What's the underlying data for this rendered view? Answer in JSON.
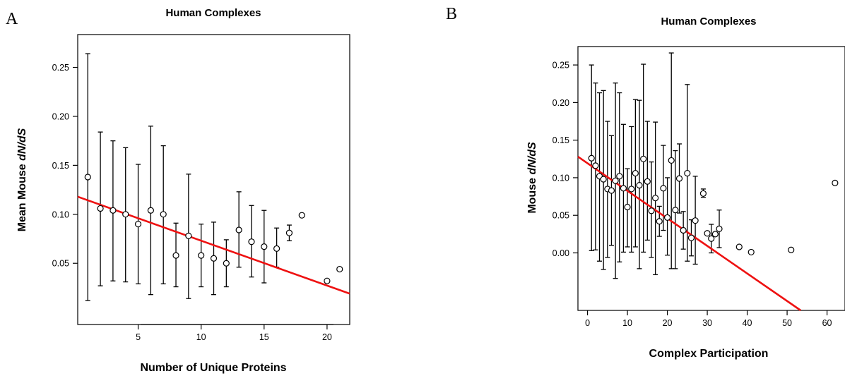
{
  "chart_data": [
    {
      "type": "scatter",
      "panel_label": "A",
      "title": "Human Complexes",
      "xlabel": "Number of Unique Proteins",
      "ylabel_prefix": "Mean Mouse ",
      "ylabel_em": "dN/dS",
      "xlim": [
        0.2,
        21.8
      ],
      "ylim": [
        -0.0125,
        0.2835
      ],
      "xticks": [
        5,
        10,
        15,
        20
      ],
      "xtick_labels": [
        "5",
        "10",
        "15",
        "20"
      ],
      "yticks": [
        0.05,
        0.1,
        0.15,
        0.2,
        0.25
      ],
      "ytick_labels": [
        "0.05",
        "0.10",
        "0.15",
        "0.20",
        "0.25"
      ],
      "x_axis_style": "bottom-only",
      "grid": false,
      "legend": "none",
      "line_color": "#ee1111",
      "regression_line": {
        "x": [
          0.2,
          21.8
        ],
        "y": [
          0.118,
          0.019
        ]
      },
      "points": [
        {
          "x": 1,
          "y": 0.138,
          "lo": 0.012,
          "hi": 0.264
        },
        {
          "x": 2,
          "y": 0.106,
          "lo": 0.027,
          "hi": 0.184
        },
        {
          "x": 3,
          "y": 0.104,
          "lo": 0.032,
          "hi": 0.175
        },
        {
          "x": 4,
          "y": 0.1,
          "lo": 0.031,
          "hi": 0.168
        },
        {
          "x": 5,
          "y": 0.09,
          "lo": 0.029,
          "hi": 0.151
        },
        {
          "x": 6,
          "y": 0.104,
          "lo": 0.018,
          "hi": 0.19
        },
        {
          "x": 7,
          "y": 0.1,
          "lo": 0.029,
          "hi": 0.17
        },
        {
          "x": 8,
          "y": 0.058,
          "lo": 0.026,
          "hi": 0.091
        },
        {
          "x": 9,
          "y": 0.078,
          "lo": 0.014,
          "hi": 0.141
        },
        {
          "x": 10,
          "y": 0.058,
          "lo": 0.026,
          "hi": 0.09
        },
        {
          "x": 11,
          "y": 0.055,
          "lo": 0.018,
          "hi": 0.092
        },
        {
          "x": 12,
          "y": 0.05,
          "lo": 0.026,
          "hi": 0.074
        },
        {
          "x": 13,
          "y": 0.084,
          "lo": 0.046,
          "hi": 0.123
        },
        {
          "x": 14,
          "y": 0.072,
          "lo": 0.036,
          "hi": 0.109
        },
        {
          "x": 15,
          "y": 0.067,
          "lo": 0.03,
          "hi": 0.104
        },
        {
          "x": 16,
          "y": 0.065,
          "lo": 0.046,
          "hi": 0.086
        },
        {
          "x": 17,
          "y": 0.081,
          "lo": 0.073,
          "hi": 0.089
        },
        {
          "x": 18,
          "y": 0.099
        },
        {
          "x": 20,
          "y": 0.032
        },
        {
          "x": 21,
          "y": 0.044
        }
      ]
    },
    {
      "type": "scatter",
      "panel_label": "B",
      "title": "Human Complexes",
      "xlabel": "Complex Participation",
      "ylabel_prefix": "Mouse ",
      "ylabel_em": "dN/dS",
      "xlim": [
        -2.4,
        64.5
      ],
      "ylim": [
        -0.0765,
        0.2745
      ],
      "xticks": [
        0,
        10,
        20,
        30,
        40,
        50,
        60
      ],
      "xtick_labels": [
        "0",
        "10",
        "20",
        "30",
        "40",
        "50",
        "60"
      ],
      "yticks": [
        0.0,
        0.05,
        0.1,
        0.15,
        0.2,
        0.25
      ],
      "ytick_labels": [
        "0.00",
        "0.05",
        "0.10",
        "0.15",
        "0.20",
        "0.25"
      ],
      "x_axis_style": "full-frame",
      "grid": false,
      "legend": "none",
      "line_color": "#ee1111",
      "regression_line": {
        "x": [
          -2.4,
          53.4
        ],
        "y": [
          0.128,
          -0.0765
        ]
      },
      "points": [
        {
          "x": 1,
          "y": 0.126,
          "lo": 0.003,
          "hi": 0.25
        },
        {
          "x": 2,
          "y": 0.116,
          "lo": 0.004,
          "hi": 0.226
        },
        {
          "x": 3,
          "y": 0.102,
          "lo": -0.011,
          "hi": 0.213
        },
        {
          "x": 4,
          "y": 0.098,
          "lo": -0.022,
          "hi": 0.216
        },
        {
          "x": 5,
          "y": 0.085,
          "lo": -0.006,
          "hi": 0.175
        },
        {
          "x": 6,
          "y": 0.083,
          "lo": 0.01,
          "hi": 0.156
        },
        {
          "x": 7,
          "y": 0.096,
          "lo": -0.034,
          "hi": 0.226
        },
        {
          "x": 8,
          "y": 0.102,
          "lo": -0.012,
          "hi": 0.213
        },
        {
          "x": 9,
          "y": 0.086,
          "lo": 0.001,
          "hi": 0.171
        },
        {
          "x": 10,
          "y": 0.061,
          "lo": 0.008,
          "hi": 0.112
        },
        {
          "x": 11,
          "y": 0.085,
          "lo": 0.001,
          "hi": 0.168
        },
        {
          "x": 12,
          "y": 0.106,
          "lo": 0.008,
          "hi": 0.204
        },
        {
          "x": 13,
          "y": 0.09,
          "lo": -0.021,
          "hi": 0.203
        },
        {
          "x": 14,
          "y": 0.125,
          "lo": 0.001,
          "hi": 0.251
        },
        {
          "x": 15,
          "y": 0.095,
          "lo": 0.017,
          "hi": 0.175
        },
        {
          "x": 16,
          "y": 0.056,
          "lo": -0.006,
          "hi": 0.121
        },
        {
          "x": 17,
          "y": 0.073,
          "lo": -0.029,
          "hi": 0.174
        },
        {
          "x": 18,
          "y": 0.042,
          "lo": 0.022,
          "hi": 0.062
        },
        {
          "x": 19,
          "y": 0.086,
          "lo": 0.03,
          "hi": 0.143
        },
        {
          "x": 20,
          "y": 0.047,
          "lo": -0.003,
          "hi": 0.1
        },
        {
          "x": 21,
          "y": 0.123,
          "lo": -0.021,
          "hi": 0.266
        },
        {
          "x": 22,
          "y": 0.057,
          "lo": -0.021,
          "hi": 0.136
        },
        {
          "x": 23,
          "y": 0.099,
          "lo": 0.053,
          "hi": 0.145
        },
        {
          "x": 24,
          "y": 0.03,
          "lo": 0.005,
          "hi": 0.055
        },
        {
          "x": 25,
          "y": 0.106,
          "lo": -0.011,
          "hi": 0.224
        },
        {
          "x": 26,
          "y": 0.02,
          "lo": -0.004,
          "hi": 0.044
        },
        {
          "x": 27,
          "y": 0.043,
          "lo": -0.015,
          "hi": 0.102
        },
        {
          "x": 29,
          "y": 0.079,
          "lo": 0.074,
          "hi": 0.085
        },
        {
          "x": 30,
          "y": 0.026
        },
        {
          "x": 31,
          "y": 0.019,
          "lo": 0.0,
          "hi": 0.038
        },
        {
          "x": 32,
          "y": 0.025
        },
        {
          "x": 33,
          "y": 0.032,
          "lo": 0.007,
          "hi": 0.057
        },
        {
          "x": 38,
          "y": 0.008
        },
        {
          "x": 41,
          "y": 0.001
        },
        {
          "x": 51,
          "y": 0.004
        },
        {
          "x": 62,
          "y": 0.093
        }
      ]
    }
  ]
}
